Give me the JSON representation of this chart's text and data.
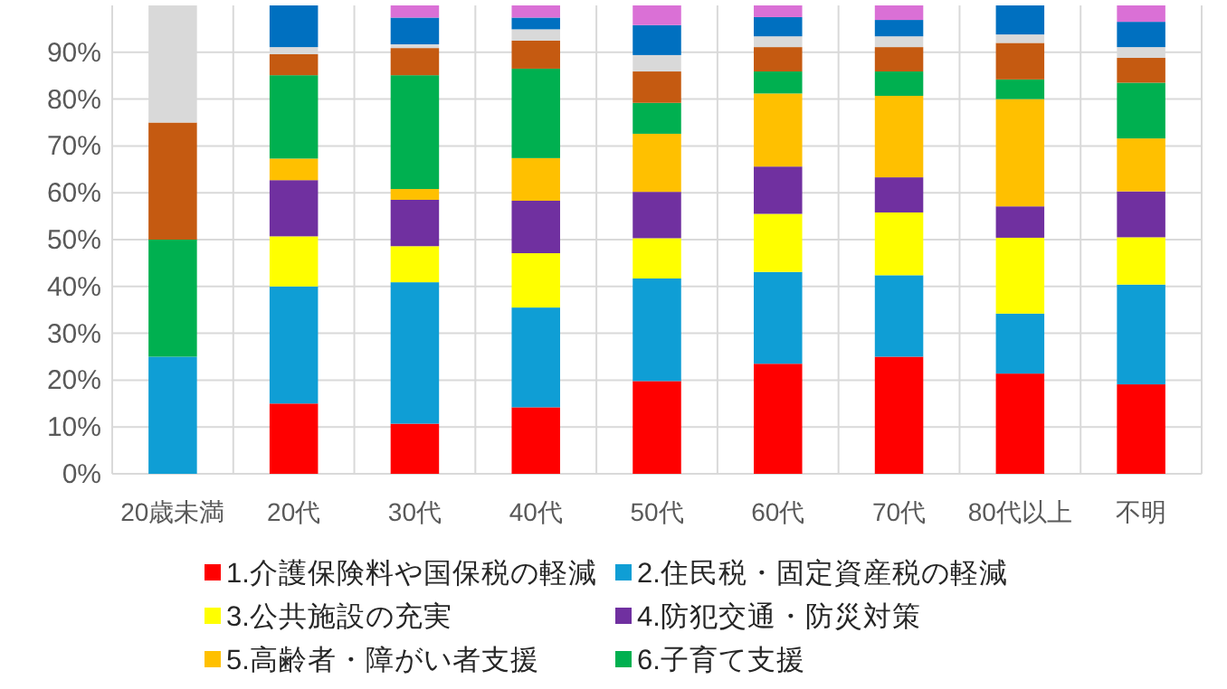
{
  "chart_data": {
    "type": "bar",
    "stacked": true,
    "categories": [
      "20歳未満",
      "20代",
      "30代",
      "40代",
      "50代",
      "60代",
      "70代",
      "80代以上",
      "不明"
    ],
    "series": [
      {
        "name": "1.介護保険料や国保税の軽減",
        "color": "#ff0000",
        "values": [
          0,
          15,
          10.7,
          14.2,
          19.8,
          23.5,
          25.0,
          21.4,
          19.1
        ]
      },
      {
        "name": "2.住民税・固定資産税の軽減",
        "color": "#0f9ed5",
        "values": [
          25,
          25,
          30.2,
          21.3,
          21.9,
          19.6,
          17.4,
          12.8,
          21.3
        ]
      },
      {
        "name": "3.公共施設の充実",
        "color": "#ffff00",
        "values": [
          0,
          10.7,
          7.7,
          11.6,
          8.6,
          12.4,
          13.4,
          16.2,
          10.1
        ]
      },
      {
        "name": "4.防犯交通・防災対策",
        "color": "#7030a0",
        "values": [
          0,
          12,
          9.9,
          11.2,
          9.9,
          10.1,
          7.5,
          6.7,
          9.8
        ]
      },
      {
        "name": "5.高齢者・障がい者支援",
        "color": "#ffc000",
        "values": [
          0,
          4.6,
          2.3,
          9.1,
          12.4,
          15.6,
          17.4,
          22.9,
          11.3
        ]
      },
      {
        "name": "6.子育て支援",
        "color": "#00b050",
        "values": [
          25,
          17.8,
          24.3,
          19.1,
          6.6,
          4.7,
          5.2,
          4.2,
          11.9
        ]
      },
      {
        "color": "#c55a11",
        "values": [
          25,
          4.5,
          5.8,
          6.0,
          6.7,
          5.2,
          5.2,
          7.8,
          5.3
        ]
      },
      {
        "color": "#d9d9d9",
        "values": [
          25,
          1.5,
          0.8,
          2.4,
          3.5,
          2.3,
          2.3,
          1.8,
          2.3
        ]
      },
      {
        "color": "#0070c0",
        "values": [
          0,
          8.9,
          5.7,
          2.5,
          6.4,
          4.1,
          3.5,
          6.2,
          5.4
        ]
      },
      {
        "color": "#da70d6",
        "values": [
          0,
          0,
          2.6,
          2.6,
          4.2,
          2.5,
          3.1,
          0,
          3.5
        ]
      }
    ],
    "ylim": [
      0,
      100
    ],
    "yticks": [
      {
        "value": 0,
        "label": "0%"
      },
      {
        "value": 10,
        "label": "10%"
      },
      {
        "value": 20,
        "label": "20%"
      },
      {
        "value": 30,
        "label": "30%"
      },
      {
        "value": 40,
        "label": "40%"
      },
      {
        "value": 50,
        "label": "50%"
      },
      {
        "value": 60,
        "label": "60%"
      },
      {
        "value": 70,
        "label": "70%"
      },
      {
        "value": 80,
        "label": "80%"
      },
      {
        "value": 90,
        "label": "90%"
      }
    ],
    "grid": true,
    "legend": "bottom"
  }
}
